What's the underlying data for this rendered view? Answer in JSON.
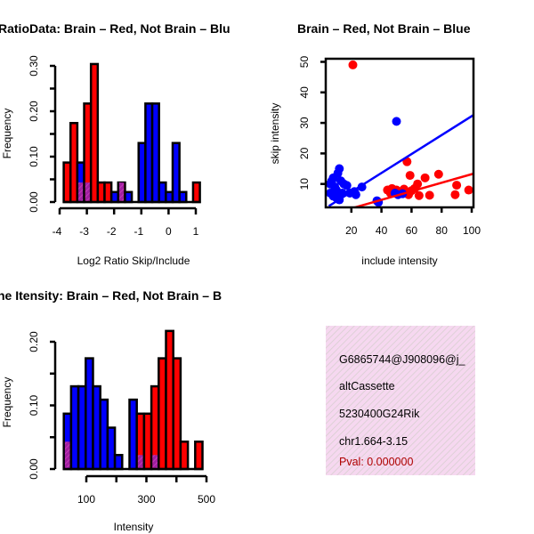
{
  "colors": {
    "red": "#ff0000",
    "blue": "#0000ff",
    "overlap": "#a020a0",
    "pval": "#b00000",
    "infobox": "#f6d8f0"
  },
  "chart_data": [
    {
      "type": "bar",
      "title": "RatioData: Brain – Red, Not Brain – Blu",
      "xlabel": "Log2 Ratio Skip/Include",
      "ylabel": "Frequency",
      "xticks": [
        "-4",
        "-3",
        "-2",
        "-1",
        "0",
        "1"
      ],
      "xtick_values": [
        -4,
        -3,
        -2,
        -1,
        0,
        1
      ],
      "yticks": [
        "0.00",
        "0.10",
        "0.20",
        "0.30"
      ],
      "ytick_values": [
        0,
        0.05,
        0.1,
        0.15,
        0.2,
        0.25,
        0.3
      ],
      "xlim": [
        -4,
        1.3
      ],
      "ylim": [
        0,
        0.31
      ],
      "bin_start": -3.85,
      "bin_width": 0.25,
      "series": [
        {
          "name": "Brain",
          "color": "red",
          "values": [
            0.087,
            0.174,
            0.043,
            0.217,
            0.304,
            0.043,
            0.043,
            0,
            0.043,
            0,
            0,
            0,
            0,
            0,
            0,
            0,
            0,
            0,
            0,
            0.043
          ]
        },
        {
          "name": "Not Brain",
          "color": "blue",
          "values": [
            0,
            0,
            0.087,
            0.043,
            0,
            0,
            0,
            0.022,
            0.043,
            0.022,
            0,
            0.13,
            0.217,
            0.217,
            0.043,
            0.022,
            0.13,
            0.022,
            0,
            0
          ]
        }
      ]
    },
    {
      "type": "scatter",
      "title": "Brain – Red, Not Brain – Blue",
      "xlabel": "include intensity",
      "ylabel": "skip intensity",
      "xticks": [
        "20",
        "40",
        "60",
        "80",
        "100"
      ],
      "xtick_values": [
        20,
        40,
        60,
        80,
        100
      ],
      "yticks": [
        "10",
        "20",
        "30",
        "40",
        "50"
      ],
      "ytick_values": [
        10,
        20,
        30,
        40,
        50
      ],
      "xlim": [
        3,
        101
      ],
      "ylim": [
        3,
        51
      ],
      "series": [
        {
          "name": "Brain",
          "color": "red",
          "points": [
            [
              21,
              49
            ],
            [
              57,
              17.3
            ],
            [
              59,
              12.8
            ],
            [
              69,
              12
            ],
            [
              78,
              13.2
            ],
            [
              90,
              9.6
            ],
            [
              44,
              8
            ],
            [
              47,
              8.5
            ],
            [
              50,
              8
            ],
            [
              53,
              7.5
            ],
            [
              55,
              8.3
            ],
            [
              58,
              6.5
            ],
            [
              60,
              7.8
            ],
            [
              62,
              8.5
            ],
            [
              64,
              10
            ],
            [
              65,
              6.2
            ],
            [
              72,
              6.3
            ],
            [
              89,
              6.5
            ],
            [
              98,
              8
            ],
            [
              46,
              7
            ],
            [
              56,
              7.2
            ]
          ],
          "fit": {
            "slope": 0.14,
            "intercept": -0.8,
            "from": 20,
            "to": 101
          }
        },
        {
          "name": "Not Brain",
          "color": "blue",
          "points": [
            [
              50,
              30.5
            ],
            [
              12,
              15
            ],
            [
              11,
              13.5
            ],
            [
              7,
              11
            ],
            [
              9,
              9
            ],
            [
              10,
              8
            ],
            [
              6,
              10
            ],
            [
              8,
              6
            ],
            [
              13,
              11
            ],
            [
              15,
              10
            ],
            [
              17,
              9.5
            ],
            [
              19,
              7
            ],
            [
              22,
              7.5
            ],
            [
              23,
              6.5
            ],
            [
              27,
              9
            ],
            [
              37,
              4.5
            ],
            [
              38,
              4
            ],
            [
              6,
              7
            ],
            [
              10,
              5.5
            ],
            [
              14,
              7
            ],
            [
              12,
              4.8
            ],
            [
              8,
              12
            ],
            [
              51,
              6.5
            ],
            [
              54,
              6.8
            ],
            [
              49,
              7
            ]
          ],
          "fit": {
            "slope": 0.31,
            "intercept": 1.2,
            "from": 5,
            "to": 101
          }
        }
      ]
    },
    {
      "type": "bar",
      "title": "ne Itensity: Brain – Red, Not Brain – B",
      "xlabel": "Intensity",
      "ylabel": "Frequency",
      "xticks": [
        "100",
        "300",
        "500"
      ],
      "xtick_values": [
        100,
        200,
        300,
        400,
        500
      ],
      "xtick_labeled": [
        100,
        300,
        500
      ],
      "yticks": [
        "0.00",
        "0.10",
        "0.20"
      ],
      "ytick_values": [
        0,
        0.05,
        0.1,
        0.15,
        0.2
      ],
      "xlim": [
        20,
        500
      ],
      "ylim": [
        0,
        0.22
      ],
      "bin_start": 25,
      "bin_width": 24.3,
      "series": [
        {
          "name": "Brain",
          "color": "red",
          "values": [
            0.043,
            0,
            0,
            0,
            0,
            0,
            0,
            0,
            0,
            0,
            0.087,
            0.087,
            0.13,
            0.174,
            0.217,
            0.174,
            0.043,
            0,
            0.043
          ]
        },
        {
          "name": "Not Brain",
          "color": "blue",
          "values": [
            0.087,
            0.13,
            0.13,
            0.174,
            0.13,
            0.109,
            0.065,
            0.022,
            0,
            0.109,
            0.022,
            0,
            0.022,
            0,
            0,
            0,
            0,
            0,
            0
          ]
        }
      ]
    }
  ],
  "info": {
    "id": "G6865744@J908096@j_",
    "event_type": "altCassette",
    "gene": "5230400G24Rik",
    "location": "chr1.664-3.15",
    "pval": "Pval: 0.000000"
  }
}
